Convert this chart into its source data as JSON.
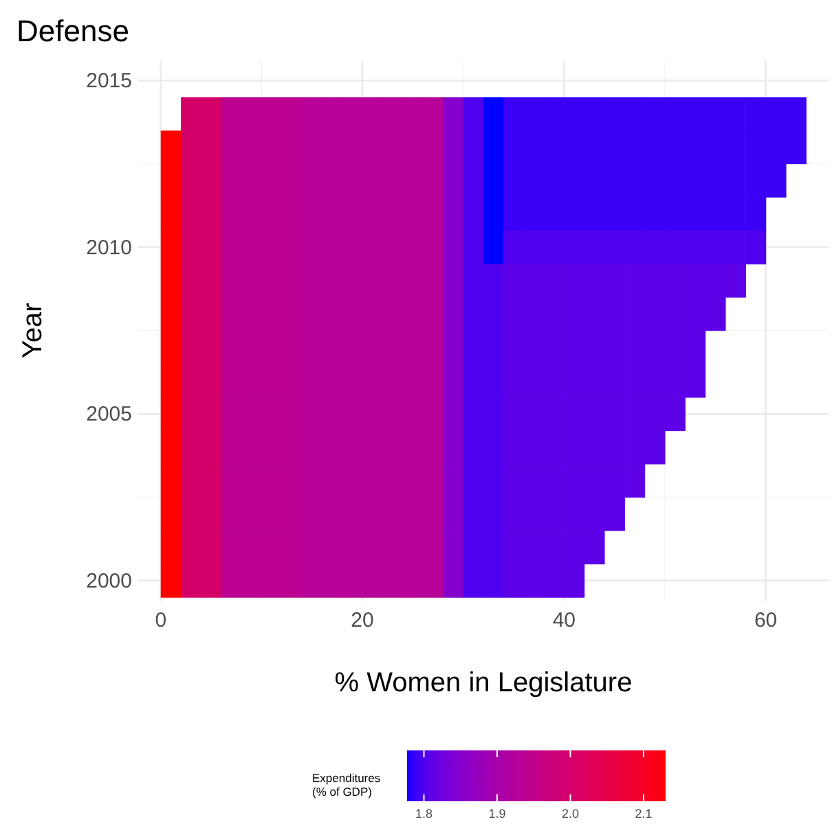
{
  "chart_data": {
    "type": "heatmap",
    "title": "Defense",
    "xlabel": "% Women in Legislature",
    "ylabel": "Year",
    "clabel": "Expenditures\n(% of GDP)",
    "x": [
      1,
      3,
      5,
      7,
      9,
      11,
      13,
      15,
      17,
      19,
      21,
      23,
      25,
      27,
      29,
      31,
      33,
      35,
      37,
      39,
      41,
      43,
      45,
      47,
      49,
      51,
      53,
      55,
      57,
      59,
      61,
      63
    ],
    "xlim": [
      -2.3,
      66.3
    ],
    "xticks": [
      0,
      20,
      40,
      60
    ],
    "y_categories": [
      "2015",
      null,
      null,
      null,
      null,
      "2010",
      null,
      null,
      null,
      null,
      "2005",
      null,
      null,
      null,
      null,
      "2000"
    ],
    "cells": [
      [
        null,
        null,
        null,
        null,
        null,
        null,
        null,
        null,
        null,
        null,
        null,
        null,
        null,
        null,
        null,
        null,
        null,
        null,
        null,
        null,
        null,
        null,
        null,
        null,
        null,
        null,
        null,
        null,
        null,
        null,
        null,
        null
      ],
      [
        null,
        2.0,
        2.0,
        1.94,
        1.94,
        1.94,
        1.94,
        1.93,
        1.93,
        1.93,
        1.93,
        1.93,
        1.93,
        1.93,
        1.85,
        1.8,
        1.777,
        1.79,
        1.79,
        1.79,
        1.79,
        1.79,
        1.79,
        1.79,
        1.79,
        1.79,
        1.79,
        1.79,
        1.79,
        1.79,
        1.79,
        1.79
      ],
      [
        2.13,
        2.0,
        2.0,
        1.94,
        1.94,
        1.94,
        1.94,
        1.93,
        1.93,
        1.93,
        1.93,
        1.93,
        1.93,
        1.93,
        1.85,
        1.8,
        1.777,
        1.79,
        1.79,
        1.79,
        1.79,
        1.79,
        1.79,
        1.79,
        1.79,
        1.79,
        1.79,
        1.79,
        1.79,
        1.79,
        1.79,
        1.79
      ],
      [
        2.13,
        2.0,
        2.0,
        1.94,
        1.94,
        1.94,
        1.94,
        1.93,
        1.93,
        1.93,
        1.93,
        1.93,
        1.93,
        1.93,
        1.85,
        1.8,
        1.777,
        1.79,
        1.79,
        1.79,
        1.79,
        1.79,
        1.79,
        1.79,
        1.79,
        1.79,
        1.79,
        1.79,
        1.79,
        1.79,
        1.79,
        null
      ],
      [
        2.13,
        2.0,
        2.0,
        1.94,
        1.94,
        1.94,
        1.94,
        1.93,
        1.93,
        1.93,
        1.93,
        1.93,
        1.93,
        1.93,
        1.85,
        1.8,
        1.777,
        1.79,
        1.79,
        1.79,
        1.79,
        1.79,
        1.79,
        1.79,
        1.79,
        1.79,
        1.79,
        1.79,
        1.79,
        1.79,
        null,
        null
      ],
      [
        2.13,
        2.0,
        2.0,
        1.94,
        1.94,
        1.94,
        1.94,
        1.93,
        1.93,
        1.93,
        1.93,
        1.93,
        1.93,
        1.93,
        1.85,
        1.8,
        1.777,
        1.8,
        1.8,
        1.8,
        1.8,
        1.8,
        1.8,
        1.8,
        1.8,
        1.8,
        1.8,
        1.8,
        1.8,
        1.8,
        null,
        null
      ],
      [
        2.13,
        2.0,
        2.0,
        1.94,
        1.94,
        1.94,
        1.94,
        1.93,
        1.93,
        1.93,
        1.93,
        1.93,
        1.93,
        1.93,
        1.85,
        1.8,
        1.8,
        1.81,
        1.81,
        1.81,
        1.81,
        1.81,
        1.81,
        1.81,
        1.81,
        1.81,
        1.81,
        1.81,
        1.81,
        null,
        null,
        null
      ],
      [
        2.13,
        2.0,
        2.0,
        1.94,
        1.94,
        1.94,
        1.94,
        1.93,
        1.93,
        1.93,
        1.93,
        1.93,
        1.93,
        1.93,
        1.85,
        1.8,
        1.8,
        1.81,
        1.81,
        1.81,
        1.81,
        1.81,
        1.81,
        1.81,
        1.81,
        1.81,
        1.81,
        1.81,
        null,
        null,
        null,
        null
      ],
      [
        2.13,
        2.0,
        2.0,
        1.94,
        1.94,
        1.94,
        1.94,
        1.93,
        1.93,
        1.93,
        1.93,
        1.93,
        1.93,
        1.93,
        1.85,
        1.8,
        1.8,
        1.81,
        1.81,
        1.81,
        1.81,
        1.81,
        1.81,
        1.81,
        1.81,
        1.81,
        1.81,
        null,
        null,
        null,
        null,
        null
      ],
      [
        2.13,
        2.0,
        2.0,
        1.94,
        1.94,
        1.94,
        1.94,
        1.93,
        1.93,
        1.93,
        1.93,
        1.93,
        1.93,
        1.93,
        1.85,
        1.8,
        1.8,
        1.81,
        1.81,
        1.81,
        1.81,
        1.81,
        1.81,
        1.81,
        1.81,
        1.81,
        1.81,
        null,
        null,
        null,
        null,
        null
      ],
      [
        2.13,
        2.0,
        2.0,
        1.94,
        1.94,
        1.94,
        1.94,
        1.93,
        1.93,
        1.93,
        1.93,
        1.93,
        1.93,
        1.93,
        1.85,
        1.8,
        1.8,
        1.81,
        1.81,
        1.81,
        1.81,
        1.81,
        1.81,
        1.81,
        1.81,
        1.81,
        null,
        null,
        null,
        null,
        null,
        null
      ],
      [
        2.13,
        2.0,
        2.0,
        1.94,
        1.94,
        1.94,
        1.94,
        1.93,
        1.93,
        1.93,
        1.93,
        1.93,
        1.93,
        1.93,
        1.85,
        1.8,
        1.8,
        1.81,
        1.81,
        1.81,
        1.81,
        1.81,
        1.81,
        1.81,
        1.81,
        null,
        null,
        null,
        null,
        null,
        null,
        null
      ],
      [
        2.13,
        2.0,
        2.0,
        1.94,
        1.94,
        1.94,
        1.94,
        1.93,
        1.93,
        1.93,
        1.93,
        1.93,
        1.93,
        1.93,
        1.85,
        1.8,
        1.8,
        1.81,
        1.81,
        1.81,
        1.81,
        1.81,
        1.81,
        1.81,
        null,
        null,
        null,
        null,
        null,
        null,
        null,
        null
      ],
      [
        2.13,
        2.0,
        2.0,
        1.94,
        1.94,
        1.94,
        1.94,
        1.93,
        1.93,
        1.93,
        1.93,
        1.93,
        1.93,
        1.93,
        1.85,
        1.8,
        1.8,
        1.81,
        1.81,
        1.81,
        1.81,
        1.81,
        1.81,
        null,
        null,
        null,
        null,
        null,
        null,
        null,
        null,
        null
      ],
      [
        2.13,
        2.0,
        2.0,
        1.94,
        1.94,
        1.94,
        1.94,
        1.93,
        1.93,
        1.93,
        1.93,
        1.93,
        1.93,
        1.93,
        1.85,
        1.8,
        1.8,
        1.81,
        1.81,
        1.81,
        1.81,
        1.81,
        null,
        null,
        null,
        null,
        null,
        null,
        null,
        null,
        null,
        null
      ],
      [
        2.13,
        2.0,
        2.0,
        1.94,
        1.94,
        1.94,
        1.94,
        1.93,
        1.93,
        1.93,
        1.93,
        1.93,
        1.93,
        1.93,
        1.85,
        1.8,
        1.8,
        1.81,
        1.81,
        1.81,
        1.81,
        null,
        null,
        null,
        null,
        null,
        null,
        null,
        null,
        null,
        null,
        null
      ]
    ],
    "clim": [
      1.777,
      2.13
    ],
    "cticks": [
      1.8,
      1.9,
      {
        "value": 2.0,
        "label": "2.0"
      },
      2.1
    ],
    "grid": true
  }
}
